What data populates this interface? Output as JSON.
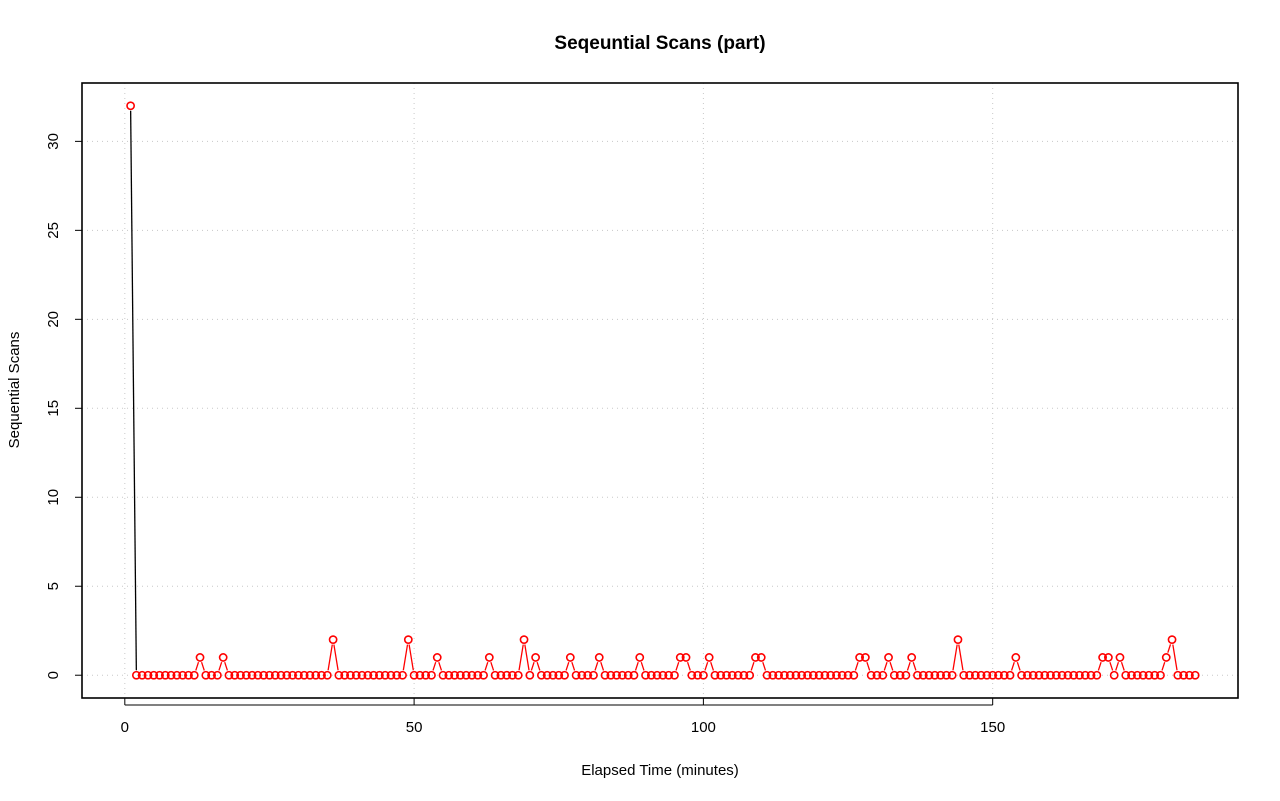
{
  "chart_data": {
    "type": "line",
    "title": "Seqeuntial Scans (part)",
    "xlabel": "Elapsed Time (minutes)",
    "ylabel": "Sequential Scans",
    "xlim": [
      -7.4,
      192.4
    ],
    "ylim": [
      -1.28,
      33.28
    ],
    "xticks": [
      0,
      50,
      100,
      150
    ],
    "yticks": [
      0,
      5,
      10,
      15,
      20,
      25,
      30
    ],
    "grid": true,
    "line_color": "#000000",
    "point_color": "#ff0000",
    "series": [
      {
        "name": "Sequential Scans",
        "x": [
          1,
          2,
          3,
          4,
          5,
          6,
          7,
          8,
          9,
          10,
          11,
          12,
          13,
          14,
          15,
          16,
          17,
          18,
          19,
          20,
          21,
          22,
          23,
          24,
          25,
          26,
          27,
          28,
          29,
          30,
          31,
          32,
          33,
          34,
          35,
          36,
          37,
          38,
          39,
          40,
          41,
          42,
          43,
          44,
          45,
          46,
          47,
          48,
          49,
          50,
          51,
          52,
          53,
          54,
          55,
          56,
          57,
          58,
          59,
          60,
          61,
          62,
          63,
          64,
          65,
          66,
          67,
          68,
          69,
          70,
          71,
          72,
          73,
          74,
          75,
          76,
          77,
          78,
          79,
          80,
          81,
          82,
          83,
          84,
          85,
          86,
          87,
          88,
          89,
          90,
          91,
          92,
          93,
          94,
          95,
          96,
          97,
          98,
          99,
          100,
          101,
          102,
          103,
          104,
          105,
          106,
          107,
          108,
          109,
          110,
          111,
          112,
          113,
          114,
          115,
          116,
          117,
          118,
          119,
          120,
          121,
          122,
          123,
          124,
          125,
          126,
          127,
          128,
          129,
          130,
          131,
          132,
          133,
          134,
          135,
          136,
          137,
          138,
          139,
          140,
          141,
          142,
          143,
          144,
          145,
          146,
          147,
          148,
          149,
          150,
          151,
          152,
          153,
          154,
          155,
          156,
          157,
          158,
          159,
          160,
          161,
          162,
          163,
          164,
          165,
          166,
          167,
          168,
          169,
          170,
          171,
          172,
          173,
          174,
          175,
          176,
          177,
          178,
          179,
          180,
          181,
          182,
          183,
          184,
          185
        ],
        "values": [
          32,
          0,
          0,
          0,
          0,
          0,
          0,
          0,
          0,
          0,
          0,
          0,
          1,
          0,
          0,
          0,
          1,
          0,
          0,
          0,
          0,
          0,
          0,
          0,
          0,
          0,
          0,
          0,
          0,
          0,
          0,
          0,
          0,
          0,
          0,
          2,
          0,
          0,
          0,
          0,
          0,
          0,
          0,
          0,
          0,
          0,
          0,
          0,
          2,
          0,
          0,
          0,
          0,
          1,
          0,
          0,
          0,
          0,
          0,
          0,
          0,
          0,
          1,
          0,
          0,
          0,
          0,
          0,
          2,
          0,
          1,
          0,
          0,
          0,
          0,
          0,
          1,
          0,
          0,
          0,
          0,
          1,
          0,
          0,
          0,
          0,
          0,
          0,
          1,
          0,
          0,
          0,
          0,
          0,
          0,
          1,
          1,
          0,
          0,
          0,
          1,
          0,
          0,
          0,
          0,
          0,
          0,
          0,
          1,
          1,
          0,
          0,
          0,
          0,
          0,
          0,
          0,
          0,
          0,
          0,
          0,
          0,
          0,
          0,
          0,
          0,
          1,
          1,
          0,
          0,
          0,
          1,
          0,
          0,
          0,
          1,
          0,
          0,
          0,
          0,
          0,
          0,
          0,
          2,
          0,
          0,
          0,
          0,
          0,
          0,
          0,
          0,
          0,
          1,
          0,
          0,
          0,
          0,
          0,
          0,
          0,
          0,
          0,
          0,
          0,
          0,
          0,
          0,
          1,
          1,
          0,
          1,
          0,
          0,
          0,
          0,
          0,
          0,
          0,
          1,
          2,
          0,
          0,
          0,
          0
        ]
      }
    ]
  }
}
